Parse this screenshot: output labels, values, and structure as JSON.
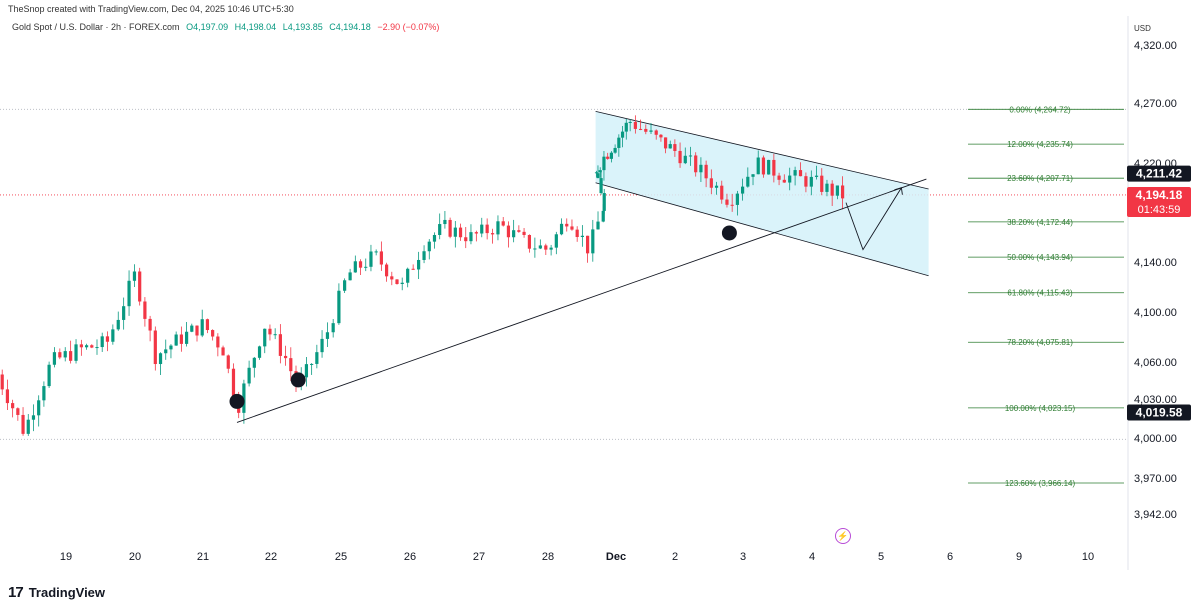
{
  "header": {
    "credit": "TheSnop created with TradingView.com, Dec 04, 2025 10:46 UTC+5:30",
    "symbol": "Gold Spot / U.S. Dollar · 2h · FOREX.com",
    "open": "O4,197.09",
    "high": "H4,198.04",
    "low": "L4,193.85",
    "close": "C4,194.18",
    "change": "−2.90 (−0.07%)",
    "currency": "USD"
  },
  "footer": {
    "brand": "TradingView",
    "logo_icon": "tradingview-logo-icon",
    "alert_icon": "lightning-icon"
  },
  "colors": {
    "up": "#089981",
    "down": "#f23645",
    "channel_fill": "#d4f1f9",
    "fib": "#2e7d32",
    "price_tag": "#f23645",
    "dark_tag": "#131722"
  },
  "chart_data": {
    "type": "candlestick",
    "y_axis": {
      "ticks": [
        4320.0,
        4270.0,
        4220.0,
        4140.0,
        4100.0,
        4060.0,
        4030.0,
        4000.0,
        3970.0,
        3942.0
      ],
      "tick_labels": [
        "4,320.00",
        "4,270.00",
        "4,220.00",
        "4,140.00",
        "4,100.00",
        "4,060.00",
        "4,030.00",
        "4,000.00",
        "3,970.00",
        "3,942.00"
      ]
    },
    "x_axis": {
      "labels": [
        "19",
        "20",
        "21",
        "22",
        "25",
        "26",
        "27",
        "28",
        "Dec",
        "2",
        "3",
        "4",
        "5",
        "6",
        "9",
        "10"
      ],
      "bold_label": "Dec"
    },
    "price_tags": [
      {
        "label": "4,211.42",
        "value": 4211.42,
        "style": "dark"
      },
      {
        "label": "4,194.18",
        "value": 4194.18,
        "style": "red",
        "countdown": "01:43:59"
      },
      {
        "label": "4,019.58",
        "value": 4019.58,
        "style": "dark"
      }
    ],
    "fibonacci": [
      {
        "label": "0.00% (4,264.72)",
        "value": 4264.72
      },
      {
        "label": "12.00% (4,235.74)",
        "value": 4235.74
      },
      {
        "label": "23.60% (4,207.71)",
        "value": 4207.71
      },
      {
        "label": "38.20% (4,172.44)",
        "value": 4172.44
      },
      {
        "label": "50.00% (4,143.94)",
        "value": 4143.94
      },
      {
        "label": "61.80% (4,115.43)",
        "value": 4115.43
      },
      {
        "label": "78.20% (4,075.81)",
        "value": 4075.81
      },
      {
        "label": "100.00% (4,023.15)",
        "value": 4023.15
      },
      {
        "label": "123.60% (3,966.14)",
        "value": 3966.14
      }
    ],
    "dotted_levels": [
      4264.72,
      4194.18,
      3999.0
    ],
    "trendline": {
      "from": {
        "day": 21.5,
        "price": 4012
      },
      "to": {
        "day": 5.3,
        "price": 4207
      }
    },
    "channel": {
      "upper": {
        "from": {
          "day": 29.1,
          "price": 4263
        },
        "to": {
          "day": 5.7,
          "price": 4199
        }
      },
      "lower": {
        "from": {
          "day": 29.1,
          "price": 4204
        },
        "to": {
          "day": 5.7,
          "price": 4129
        }
      }
    },
    "pivots": [
      {
        "day": 21.5,
        "price": 4022
      },
      {
        "day": 22.4,
        "price": 4039
      },
      {
        "day": 2.8,
        "price": 4157
      }
    ],
    "projection": [
      {
        "day": 4.5,
        "price": 4188
      },
      {
        "day": 4.75,
        "price": 4150
      },
      {
        "day": 5.3,
        "price": 4200
      }
    ]
  }
}
